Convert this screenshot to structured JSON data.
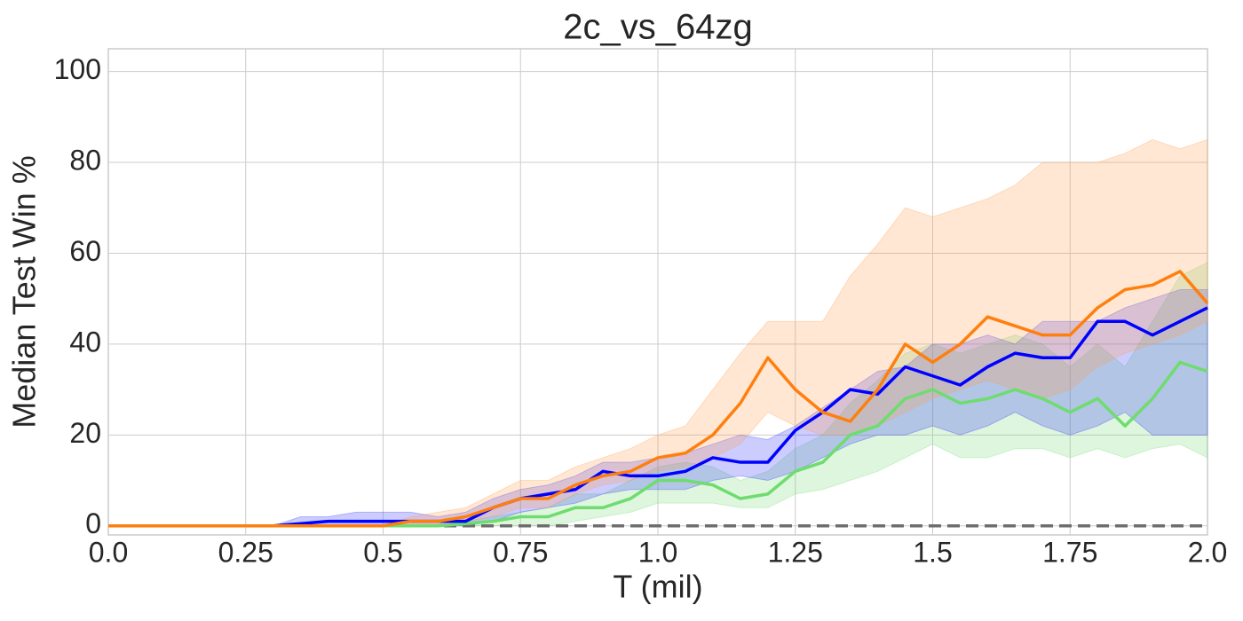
{
  "chart_data": {
    "type": "line",
    "title": "2c_vs_64zg",
    "x_label": "T (mil)",
    "y_label": "Median Test Win %",
    "x": [
      0,
      0.05,
      0.1,
      0.15,
      0.2,
      0.25,
      0.3,
      0.35,
      0.4,
      0.45,
      0.5,
      0.55,
      0.6,
      0.65,
      0.7,
      0.75,
      0.8,
      0.85,
      0.9,
      0.95,
      1.0,
      1.05,
      1.1,
      1.15,
      1.2,
      1.25,
      1.3,
      1.35,
      1.4,
      1.45,
      1.5,
      1.55,
      1.6,
      1.65,
      1.7,
      1.75,
      1.8,
      1.85,
      1.9,
      1.95,
      2.0
    ],
    "series": [
      {
        "color": "#6edc6e",
        "band_color": "#77dd77",
        "values": [
          0,
          0,
          0,
          0,
          0,
          0,
          0,
          0,
          0,
          0,
          0,
          0,
          0,
          0.5,
          1,
          2,
          2,
          4,
          4,
          6,
          10,
          10,
          9,
          6,
          7,
          12,
          14,
          20,
          22,
          28,
          30,
          27,
          28,
          30,
          28,
          25,
          28,
          22,
          28,
          36,
          34
        ],
        "lower": [
          0,
          0,
          0,
          0,
          0,
          0,
          0,
          0,
          0,
          0,
          0,
          0,
          0,
          0,
          0,
          0,
          0,
          1,
          2,
          3,
          5,
          5,
          5,
          4,
          4,
          7,
          8,
          10,
          12,
          15,
          18,
          15,
          15,
          17,
          17,
          15,
          17,
          15,
          17,
          18,
          15
        ],
        "upper": [
          0,
          0,
          0,
          0,
          0,
          0,
          0,
          0,
          0,
          0,
          0,
          0,
          0,
          1,
          2,
          3,
          4,
          7,
          7,
          10,
          13,
          14,
          13,
          10,
          12,
          17,
          20,
          27,
          32,
          38,
          40,
          38,
          40,
          42,
          40,
          35,
          40,
          35,
          45,
          55,
          58
        ]
      },
      {
        "color": "#0000ff",
        "band_color": "#3333ff",
        "values": [
          0,
          0,
          0,
          0,
          0,
          0,
          0,
          0.5,
          1,
          1,
          1,
          1,
          1,
          1,
          4,
          6,
          7,
          8,
          12,
          11,
          11,
          12,
          15,
          14,
          14,
          21,
          25,
          30,
          29,
          35,
          33,
          31,
          35,
          38,
          37,
          37,
          45,
          45,
          42,
          45,
          48
        ],
        "lower": [
          0,
          0,
          0,
          0,
          0,
          0,
          0,
          0,
          0,
          0,
          0,
          0,
          0,
          0,
          1,
          3,
          4,
          5,
          7,
          8,
          8,
          8,
          10,
          11,
          10,
          12,
          15,
          18,
          20,
          20,
          22,
          20,
          22,
          25,
          22,
          20,
          22,
          25,
          20,
          20,
          20
        ],
        "upper": [
          0,
          0,
          0,
          0,
          0,
          0,
          0,
          2,
          2,
          3,
          3,
          3,
          2,
          3,
          6,
          8,
          9,
          11,
          14,
          14,
          15,
          16,
          18,
          20,
          19,
          22,
          26,
          30,
          34,
          35,
          40,
          40,
          42,
          40,
          45,
          45,
          45,
          48,
          50,
          52,
          52
        ]
      },
      {
        "color": "#ff7f0e",
        "band_color": "#ff9f50",
        "values": [
          0,
          0,
          0,
          0,
          0,
          0,
          0,
          0,
          0,
          0,
          0,
          1,
          1,
          2,
          4,
          6,
          6,
          9,
          11,
          12,
          15,
          16,
          20,
          27,
          37,
          30,
          25,
          23,
          30,
          40,
          36,
          40,
          46,
          44,
          42,
          42,
          48,
          52,
          53,
          56,
          49
        ],
        "lower": [
          0,
          0,
          0,
          0,
          0,
          0,
          0,
          0,
          0,
          0,
          0,
          0,
          0,
          1,
          2,
          4,
          4,
          7,
          9,
          10,
          12,
          13,
          15,
          18,
          25,
          22,
          20,
          20,
          22,
          25,
          28,
          30,
          32,
          30,
          28,
          30,
          35,
          38,
          40,
          42,
          45
        ],
        "upper": [
          0,
          0,
          0,
          0,
          0,
          0,
          0,
          0,
          0,
          0,
          0,
          2,
          3,
          4,
          7,
          10,
          10,
          13,
          15,
          17,
          20,
          22,
          30,
          38,
          45,
          45,
          45,
          55,
          62,
          70,
          68,
          70,
          72,
          75,
          80,
          80,
          80,
          82,
          85,
          83,
          85
        ]
      }
    ],
    "reference_line": 0,
    "reference_color": "#6e6e6e",
    "xlim": [
      0,
      2
    ],
    "xticks": [
      {
        "value": 0,
        "label": "0.0"
      },
      0.25,
      0.5,
      0.75,
      {
        "value": 1,
        "label": "1.0"
      },
      1.25,
      1.5,
      1.75,
      {
        "value": 2,
        "label": "2.0"
      }
    ],
    "ylim": [
      -2,
      105
    ],
    "yticks": [
      0,
      20,
      40,
      60,
      80,
      100
    ],
    "grid": true
  }
}
